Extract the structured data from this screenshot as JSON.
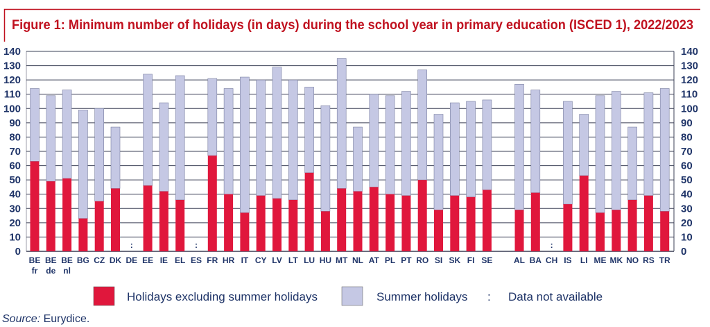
{
  "chart_data": {
    "type": "bar",
    "stacked": true,
    "title": "Figure 1: Minimum number of holidays (in days) during the school year in primary education (ISCED 1), 2022/2023",
    "ylim": [
      0,
      140
    ],
    "yticks": [
      0,
      10,
      20,
      30,
      40,
      50,
      60,
      70,
      80,
      90,
      100,
      110,
      120,
      130,
      140
    ],
    "grid": true,
    "categories": [
      {
        "code": "BE",
        "sub": "fr",
        "slot": 0
      },
      {
        "code": "BE",
        "sub": "de",
        "slot": 1
      },
      {
        "code": "BE",
        "sub": "nl",
        "slot": 2
      },
      {
        "code": "BG",
        "slot": 3
      },
      {
        "code": "CZ",
        "slot": 4
      },
      {
        "code": "DK",
        "slot": 5
      },
      {
        "code": "DE",
        "slot": 6
      },
      {
        "code": "EE",
        "slot": 7
      },
      {
        "code": "IE",
        "slot": 8
      },
      {
        "code": "EL",
        "slot": 9
      },
      {
        "code": "ES",
        "slot": 10
      },
      {
        "code": "FR",
        "slot": 11
      },
      {
        "code": "HR",
        "slot": 12
      },
      {
        "code": "IT",
        "slot": 13
      },
      {
        "code": "CY",
        "slot": 14
      },
      {
        "code": "LV",
        "slot": 15
      },
      {
        "code": "LT",
        "slot": 16
      },
      {
        "code": "LU",
        "slot": 17
      },
      {
        "code": "HU",
        "slot": 18
      },
      {
        "code": "MT",
        "slot": 19
      },
      {
        "code": "NL",
        "slot": 20
      },
      {
        "code": "AT",
        "slot": 21
      },
      {
        "code": "PL",
        "slot": 22
      },
      {
        "code": "PT",
        "slot": 23
      },
      {
        "code": "RO",
        "slot": 24
      },
      {
        "code": "SI",
        "slot": 25
      },
      {
        "code": "SK",
        "slot": 26
      },
      {
        "code": "FI",
        "slot": 27
      },
      {
        "code": "SE",
        "slot": 28
      },
      {
        "code": "AL",
        "slot": 30
      },
      {
        "code": "BA",
        "slot": 31
      },
      {
        "code": "CH",
        "slot": 32
      },
      {
        "code": "IS",
        "slot": 33
      },
      {
        "code": "LI",
        "slot": 34
      },
      {
        "code": "ME",
        "slot": 35
      },
      {
        "code": "MK",
        "slot": 36
      },
      {
        "code": "NO",
        "slot": 37
      },
      {
        "code": "RS",
        "slot": 38
      },
      {
        "code": "TR",
        "slot": 39
      }
    ],
    "series": [
      {
        "name": "Holidays excluding summer holidays",
        "color": "#e0173c",
        "values": [
          63,
          49,
          51,
          23,
          35,
          44,
          null,
          46,
          42,
          36,
          null,
          67,
          40,
          27,
          39,
          37,
          36,
          55,
          28,
          44,
          42,
          45,
          40,
          39,
          50,
          29,
          39,
          38,
          43,
          29,
          41,
          null,
          33,
          53,
          27,
          29,
          36,
          39,
          28
        ]
      },
      {
        "name": "Summer holidays",
        "color": "#c5c8e4",
        "values": [
          51,
          60,
          62,
          76,
          65,
          43,
          null,
          78,
          62,
          87,
          null,
          54,
          74,
          95,
          81,
          92,
          84,
          60,
          74,
          91,
          45,
          65,
          69,
          73,
          77,
          67,
          65,
          67,
          63,
          88,
          72,
          null,
          72,
          43,
          82,
          83,
          51,
          72,
          86
        ]
      }
    ],
    "missing_marker": ":",
    "legend": {
      "placement": "bottom",
      "na_symbol": ":",
      "na_label": "Data not available"
    },
    "source_label": "Source:",
    "source_text": " Eurydice."
  }
}
